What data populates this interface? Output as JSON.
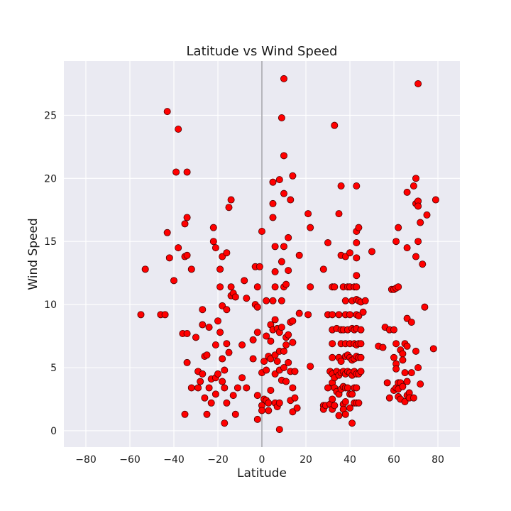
{
  "chart_data": {
    "type": "scatter",
    "title": "Latitude vs Wind Speed",
    "xlabel": "Latitude",
    "ylabel": "Wind Speed",
    "xlim": [
      -90,
      90
    ],
    "ylim": [
      -1.3,
      29.3
    ],
    "xticks": [
      "−80",
      "−60",
      "−40",
      "−20",
      "0",
      "20",
      "40",
      "60",
      "80"
    ],
    "xtick_values": [
      -80,
      -60,
      -40,
      -20,
      0,
      20,
      40,
      60,
      80
    ],
    "yticks": [
      "0",
      "5",
      "10",
      "15",
      "20",
      "25"
    ],
    "ytick_values": [
      0,
      5,
      10,
      15,
      20,
      25
    ],
    "grid": true,
    "reference_line_x": 0,
    "colors": {
      "background": "#eaeaf2",
      "grid": "#ffffff",
      "marker_fill": "#ff0000",
      "marker_edge": "#4d0000",
      "reference_line": "#b0b0b6"
    },
    "points": [
      [
        -55,
        9.2
      ],
      [
        -53,
        12.8
      ],
      [
        -46,
        9.2
      ],
      [
        -44,
        9.2
      ],
      [
        -43,
        25.3
      ],
      [
        -43,
        15.7
      ],
      [
        -42,
        13.7
      ],
      [
        -40,
        11.9
      ],
      [
        -39,
        20.5
      ],
      [
        -38,
        23.9
      ],
      [
        -38,
        14.5
      ],
      [
        -36,
        7.7
      ],
      [
        -35,
        16.4
      ],
      [
        -35,
        13.8
      ],
      [
        -34,
        20.5
      ],
      [
        -34,
        16.9
      ],
      [
        -34,
        13.9
      ],
      [
        -35,
        1.3
      ],
      [
        -34,
        7.7
      ],
      [
        -34,
        5.4
      ],
      [
        -32,
        12.8
      ],
      [
        -32,
        3.4
      ],
      [
        -30,
        7.4
      ],
      [
        -29,
        4.7
      ],
      [
        -29,
        3.4
      ],
      [
        -28,
        3.9
      ],
      [
        -27,
        9.6
      ],
      [
        -27,
        4.5
      ],
      [
        -27,
        8.4
      ],
      [
        -26,
        5.9
      ],
      [
        -26,
        2.6
      ],
      [
        -25,
        1.3
      ],
      [
        -25,
        6.0
      ],
      [
        -24,
        8.2
      ],
      [
        -24,
        3.4
      ],
      [
        -23,
        4.1
      ],
      [
        -23,
        2.2
      ],
      [
        -22,
        16.1
      ],
      [
        -22,
        15.0
      ],
      [
        -21,
        14.5
      ],
      [
        -21,
        6.8
      ],
      [
        -21,
        4.2
      ],
      [
        -21,
        2.9
      ],
      [
        -20,
        4.5
      ],
      [
        -20,
        8.7
      ],
      [
        -19,
        7.8
      ],
      [
        -19,
        11.4
      ],
      [
        -19,
        12.8
      ],
      [
        -18,
        13.8
      ],
      [
        -18,
        9.9
      ],
      [
        -18,
        5.7
      ],
      [
        -18,
        3.9
      ],
      [
        -17,
        3.4
      ],
      [
        -17,
        0.6
      ],
      [
        -17,
        4.8
      ],
      [
        -16,
        14.1
      ],
      [
        -16,
        9.6
      ],
      [
        -16,
        6.9
      ],
      [
        -16,
        2.2
      ],
      [
        -15,
        6.2
      ],
      [
        -15,
        17.7
      ],
      [
        -14,
        18.3
      ],
      [
        -14,
        11.4
      ],
      [
        -14,
        10.7
      ],
      [
        -13,
        10.9
      ],
      [
        -13,
        2.8
      ],
      [
        -12,
        1.3
      ],
      [
        -12,
        10.6
      ],
      [
        -11,
        3.4
      ],
      [
        -9,
        6.8
      ],
      [
        -9,
        4.2
      ],
      [
        -8,
        11.9
      ],
      [
        -7,
        10.5
      ],
      [
        -7,
        3.4
      ],
      [
        -4,
        7.2
      ],
      [
        -4,
        5.7
      ],
      [
        -3,
        13.0
      ],
      [
        -3,
        10.0
      ],
      [
        -2,
        11.4
      ],
      [
        -2,
        9.8
      ],
      [
        -2,
        7.8
      ],
      [
        -2,
        2.8
      ],
      [
        -2,
        0.9
      ],
      [
        -1,
        13.0
      ],
      [
        0,
        15.8
      ],
      [
        0,
        4.6
      ],
      [
        0,
        2.0
      ],
      [
        0,
        1.6
      ],
      [
        1,
        5.5
      ],
      [
        1,
        2.5
      ],
      [
        2,
        10.3
      ],
      [
        2,
        7.5
      ],
      [
        2,
        4.8
      ],
      [
        2,
        2.4
      ],
      [
        3,
        5.9
      ],
      [
        3,
        2.2
      ],
      [
        3,
        1.6
      ],
      [
        4,
        8.4
      ],
      [
        4,
        7.1
      ],
      [
        4,
        5.7
      ],
      [
        4,
        3.2
      ],
      [
        5,
        19.7
      ],
      [
        5,
        18.0
      ],
      [
        5,
        16.9
      ],
      [
        5,
        10.3
      ],
      [
        5,
        8.0
      ],
      [
        6,
        14.6
      ],
      [
        6,
        12.6
      ],
      [
        6,
        11.4
      ],
      [
        6,
        8.8
      ],
      [
        6,
        6.0
      ],
      [
        6,
        4.5
      ],
      [
        6,
        2.2
      ],
      [
        7,
        5.5
      ],
      [
        7,
        8.1
      ],
      [
        7,
        1.9
      ],
      [
        8,
        19.9
      ],
      [
        8,
        7.8
      ],
      [
        8,
        6.3
      ],
      [
        8,
        4.8
      ],
      [
        8,
        2.2
      ],
      [
        8,
        0.1
      ],
      [
        9,
        24.8
      ],
      [
        9,
        13.4
      ],
      [
        9,
        10.3
      ],
      [
        9,
        8.2
      ],
      [
        9,
        4.0
      ],
      [
        10,
        27.9
      ],
      [
        10,
        21.8
      ],
      [
        10,
        18.8
      ],
      [
        10,
        14.6
      ],
      [
        10,
        11.4
      ],
      [
        10,
        6.3
      ],
      [
        10,
        5.0
      ],
      [
        11,
        11.6
      ],
      [
        11,
        7.4
      ],
      [
        11,
        6.8
      ],
      [
        11,
        3.9
      ],
      [
        12,
        15.3
      ],
      [
        12,
        12.7
      ],
      [
        12,
        7.6
      ],
      [
        12,
        5.4
      ],
      [
        13,
        18.3
      ],
      [
        13,
        8.6
      ],
      [
        13,
        4.7
      ],
      [
        13,
        2.4
      ],
      [
        14,
        20.2
      ],
      [
        14,
        8.7
      ],
      [
        14,
        7.0
      ],
      [
        14,
        3.4
      ],
      [
        14,
        1.5
      ],
      [
        15,
        4.7
      ],
      [
        15,
        2.6
      ],
      [
        16,
        1.8
      ],
      [
        17,
        13.9
      ],
      [
        17,
        9.3
      ],
      [
        21,
        17.2
      ],
      [
        21,
        9.2
      ],
      [
        22,
        16.1
      ],
      [
        22,
        11.4
      ],
      [
        22,
        5.1
      ],
      [
        28,
        12.8
      ],
      [
        28,
        2.0
      ],
      [
        28,
        1.7
      ],
      [
        29,
        2.0
      ],
      [
        30,
        14.9
      ],
      [
        30,
        9.2
      ],
      [
        30,
        3.4
      ],
      [
        31,
        4.7
      ],
      [
        31,
        2.1
      ],
      [
        32,
        11.4
      ],
      [
        32,
        9.2
      ],
      [
        32,
        8.0
      ],
      [
        32,
        6.9
      ],
      [
        32,
        5.8
      ],
      [
        32,
        4.5
      ],
      [
        32,
        3.8
      ],
      [
        32,
        2.5
      ],
      [
        32,
        1.7
      ],
      [
        33,
        24.2
      ],
      [
        33,
        11.4
      ],
      [
        33,
        4.2
      ],
      [
        33,
        3.4
      ],
      [
        33,
        2.0
      ],
      [
        34,
        8.1
      ],
      [
        34,
        4.7
      ],
      [
        34,
        3.1
      ],
      [
        35,
        17.2
      ],
      [
        35,
        9.2
      ],
      [
        35,
        5.8
      ],
      [
        35,
        4.4
      ],
      [
        35,
        2.9
      ],
      [
        35,
        1.2
      ],
      [
        36,
        19.4
      ],
      [
        36,
        13.9
      ],
      [
        36,
        8.0
      ],
      [
        36,
        6.9
      ],
      [
        36,
        5.5
      ],
      [
        36,
        4.6
      ],
      [
        36,
        3.3
      ],
      [
        37,
        11.4
      ],
      [
        37,
        8.0
      ],
      [
        37,
        4.7
      ],
      [
        37,
        3.5
      ],
      [
        37,
        2.1
      ],
      [
        37,
        1.7
      ],
      [
        38,
        13.8
      ],
      [
        38,
        10.3
      ],
      [
        38,
        9.2
      ],
      [
        38,
        6.9
      ],
      [
        38,
        5.9
      ],
      [
        38,
        4.5
      ],
      [
        38,
        3.4
      ],
      [
        38,
        2.3
      ],
      [
        38,
        1.3
      ],
      [
        39,
        11.4
      ],
      [
        39,
        8.0
      ],
      [
        39,
        6.0
      ],
      [
        39,
        4.7
      ],
      [
        39,
        3.4
      ],
      [
        40,
        14.1
      ],
      [
        40,
        11.4
      ],
      [
        40,
        9.2
      ],
      [
        40,
        6.9
      ],
      [
        40,
        5.8
      ],
      [
        40,
        4.6
      ],
      [
        40,
        2.9
      ],
      [
        40,
        1.8
      ],
      [
        41,
        10.3
      ],
      [
        41,
        8.1
      ],
      [
        41,
        5.6
      ],
      [
        41,
        4.4
      ],
      [
        41,
        2.9
      ],
      [
        41,
        0.6
      ],
      [
        42,
        11.4
      ],
      [
        42,
        8.0
      ],
      [
        42,
        6.9
      ],
      [
        42,
        5.7
      ],
      [
        42,
        4.7
      ],
      [
        42,
        3.4
      ],
      [
        42,
        2.2
      ],
      [
        43,
        19.4
      ],
      [
        43,
        15.8
      ],
      [
        43,
        14.9
      ],
      [
        43,
        13.7
      ],
      [
        43,
        12.3
      ],
      [
        43,
        11.4
      ],
      [
        43,
        10.4
      ],
      [
        43,
        9.2
      ],
      [
        43,
        8.1
      ],
      [
        43,
        6.8
      ],
      [
        43,
        5.9
      ],
      [
        43,
        4.5
      ],
      [
        43,
        3.4
      ],
      [
        43,
        2.2
      ],
      [
        44,
        16.1
      ],
      [
        44,
        10.3
      ],
      [
        44,
        9.1
      ],
      [
        44,
        6.9
      ],
      [
        44,
        5.8
      ],
      [
        44,
        4.5
      ],
      [
        44,
        2.2
      ],
      [
        45,
        10.2
      ],
      [
        45,
        8.0
      ],
      [
        45,
        6.9
      ],
      [
        45,
        5.8
      ],
      [
        45,
        4.7
      ],
      [
        46,
        9.4
      ],
      [
        47,
        10.3
      ],
      [
        50,
        14.2
      ],
      [
        53,
        6.7
      ],
      [
        55,
        6.6
      ],
      [
        56,
        8.2
      ],
      [
        57,
        3.8
      ],
      [
        58,
        8.0
      ],
      [
        58,
        2.6
      ],
      [
        59,
        11.2
      ],
      [
        60,
        11.2
      ],
      [
        60,
        8.0
      ],
      [
        60,
        5.8
      ],
      [
        60,
        3.2
      ],
      [
        61,
        15.0
      ],
      [
        61,
        11.3
      ],
      [
        61,
        6.9
      ],
      [
        61,
        5.3
      ],
      [
        61,
        4.9
      ],
      [
        61,
        3.4
      ],
      [
        62,
        16.1
      ],
      [
        62,
        11.4
      ],
      [
        62,
        3.8
      ],
      [
        62,
        3.3
      ],
      [
        62,
        2.7
      ],
      [
        63,
        6.4
      ],
      [
        63,
        3.8
      ],
      [
        63,
        2.5
      ],
      [
        64,
        6.1
      ],
      [
        64,
        5.6
      ],
      [
        64,
        3.5
      ],
      [
        65,
        6.9
      ],
      [
        65,
        4.6
      ],
      [
        65,
        2.3
      ],
      [
        66,
        18.9
      ],
      [
        66,
        14.5
      ],
      [
        66,
        8.9
      ],
      [
        66,
        6.7
      ],
      [
        66,
        3.9
      ],
      [
        66,
        2.8
      ],
      [
        67,
        3.0
      ],
      [
        67,
        2.6
      ],
      [
        68,
        8.6
      ],
      [
        68,
        4.6
      ],
      [
        69,
        19.4
      ],
      [
        69,
        2.6
      ],
      [
        70,
        20.0
      ],
      [
        70,
        18.0
      ],
      [
        70,
        13.8
      ],
      [
        70,
        6.3
      ],
      [
        71,
        18.2
      ],
      [
        71,
        17.8
      ],
      [
        71,
        15.0
      ],
      [
        71,
        5.0
      ],
      [
        71,
        27.5
      ],
      [
        72,
        16.5
      ],
      [
        72,
        3.7
      ],
      [
        73,
        13.2
      ],
      [
        74,
        9.8
      ],
      [
        75,
        17.1
      ],
      [
        78,
        6.5
      ],
      [
        79,
        18.3
      ]
    ]
  }
}
